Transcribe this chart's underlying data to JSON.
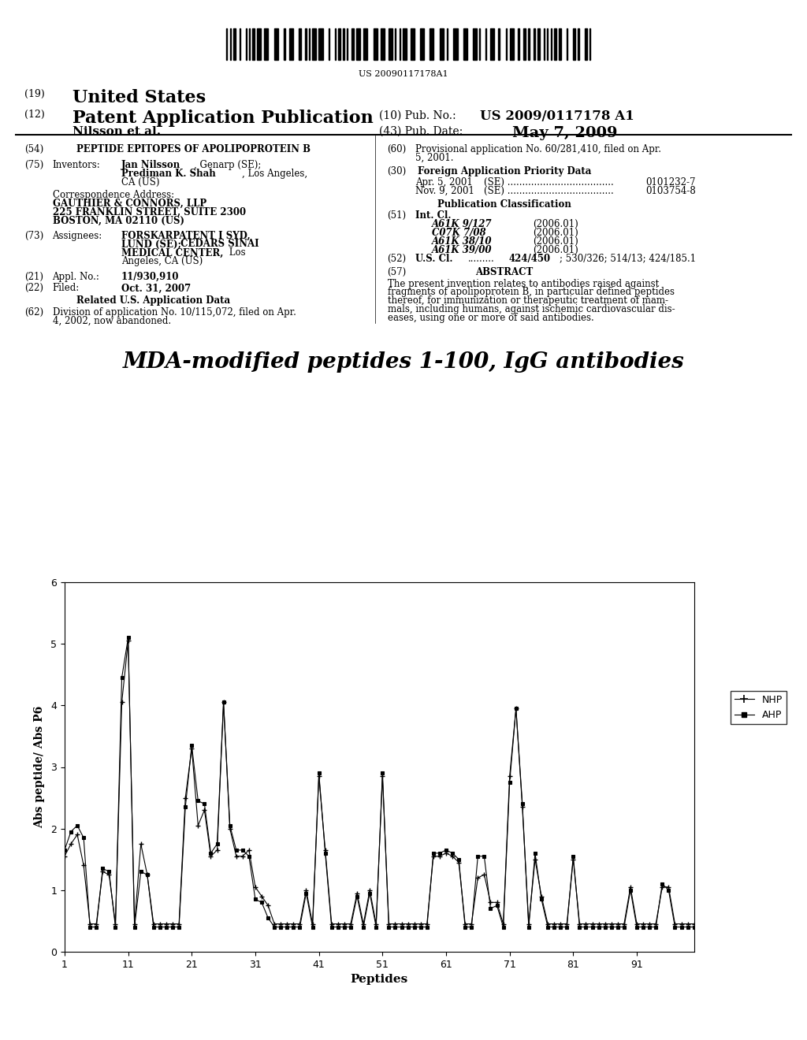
{
  "title": "MDA-modified peptides 1-100, IgG antibodies",
  "xlabel": "Peptides",
  "ylabel": "Abs peptide/ Abs P6",
  "ylim": [
    0,
    6
  ],
  "yticks": [
    0,
    1,
    2,
    3,
    4,
    5,
    6
  ],
  "xticks": [
    1,
    11,
    21,
    31,
    41,
    51,
    61,
    71,
    81,
    91
  ],
  "legend_nhp": "NHP",
  "legend_ahp": "AHP",
  "nhp_data": [
    1.55,
    1.75,
    1.9,
    1.4,
    0.45,
    0.45,
    1.3,
    1.25,
    0.45,
    4.05,
    5.05,
    0.45,
    1.75,
    1.25,
    0.45,
    0.45,
    0.45,
    0.45,
    0.45,
    2.5,
    3.3,
    2.05,
    2.3,
    1.55,
    1.65,
    4.05,
    2.0,
    1.55,
    1.55,
    1.65,
    1.05,
    0.9,
    0.75,
    0.45,
    0.45,
    0.45,
    0.45,
    0.45,
    1.0,
    0.45,
    2.85,
    1.65,
    0.45,
    0.45,
    0.45,
    0.45,
    0.95,
    0.45,
    1.0,
    0.45,
    2.85,
    0.45,
    0.45,
    0.45,
    0.45,
    0.45,
    0.45,
    0.45,
    1.55,
    1.55,
    1.6,
    1.55,
    1.45,
    0.45,
    0.45,
    1.2,
    1.25,
    0.8,
    0.8,
    0.45,
    2.85,
    3.95,
    2.35,
    0.45,
    1.5,
    0.9,
    0.45,
    0.45,
    0.45,
    0.45,
    1.5,
    0.45,
    0.45,
    0.45,
    0.45,
    0.45,
    0.45,
    0.45,
    0.45,
    1.05,
    0.45,
    0.45,
    0.45,
    0.45,
    1.05,
    1.05,
    0.45,
    0.45,
    0.45,
    0.45
  ],
  "ahp_data": [
    1.65,
    1.95,
    2.05,
    1.85,
    0.4,
    0.4,
    1.35,
    1.3,
    0.4,
    4.45,
    5.1,
    0.4,
    1.3,
    1.25,
    0.4,
    0.4,
    0.4,
    0.4,
    0.4,
    2.35,
    3.35,
    2.45,
    2.4,
    1.6,
    1.75,
    4.05,
    2.05,
    1.65,
    1.65,
    1.55,
    0.85,
    0.8,
    0.55,
    0.4,
    0.4,
    0.4,
    0.4,
    0.4,
    0.95,
    0.4,
    2.9,
    1.6,
    0.4,
    0.4,
    0.4,
    0.4,
    0.9,
    0.4,
    0.95,
    0.4,
    2.9,
    0.4,
    0.4,
    0.4,
    0.4,
    0.4,
    0.4,
    0.4,
    1.6,
    1.6,
    1.65,
    1.6,
    1.5,
    0.4,
    0.4,
    1.55,
    1.55,
    0.7,
    0.75,
    0.4,
    2.75,
    3.95,
    2.4,
    0.4,
    1.6,
    0.85,
    0.4,
    0.4,
    0.4,
    0.4,
    1.55,
    0.4,
    0.4,
    0.4,
    0.4,
    0.4,
    0.4,
    0.4,
    0.4,
    1.0,
    0.4,
    0.4,
    0.4,
    0.4,
    1.1,
    1.0,
    0.4,
    0.4,
    0.4,
    0.4
  ],
  "barcode_text": "US 20090117178A1",
  "line1_label": "(19)",
  "line1_text": "United States",
  "line2_label": "(12)",
  "line2_text": "Patent Application Publication",
  "pub_no_label": "(10) Pub. No.:",
  "pub_no_value": "US 2009/0117178 A1",
  "author": "Nilsson et al.",
  "pub_date_label": "(43) Pub. Date:",
  "pub_date_value": "May 7, 2009",
  "field54_label": "(54)",
  "field54_text": "PEPTIDE EPITOPES OF APOLIPOPROTEIN B",
  "field75_label": "(75)",
  "field75_name": "Inventors:",
  "inventor1_bold": "Jan Nilsson",
  "inventor1_rest": ", Genarp (SE);",
  "inventor2_bold": "Prediman K. Shah",
  "inventor2_rest": ", Los Angeles,",
  "inventor2_line2": "CA (US)",
  "corr_label": "Correspondence Address:",
  "corr_line1": "GAUTHIER & CONNORS, LLP",
  "corr_line2": "225 FRANKLIN STREET, SUITE 2300",
  "corr_line3": "BOSTON, MA 02110 (US)",
  "field73_label": "(73)",
  "field73_name": "Assignees:",
  "assignee_line1": "FORSKARPATENT I SYD,",
  "assignee_line2_bold": "LUND (SE);",
  "assignee_line2_rest": " CEDARS SINAI",
  "assignee_line3_bold": "MEDICAL CENTER,",
  "assignee_line3_rest": " Los",
  "assignee_line4": "Angeles, CA (US)",
  "field21_label": "(21)",
  "field21_name": "Appl. No.:",
  "field21_value": "11/930,910",
  "field22_label": "(22)",
  "field22_name": "Filed:",
  "field22_value": "Oct. 31, 2007",
  "related_header": "Related U.S. Application Data",
  "field62_label": "(62)",
  "field62_text1": "Division of application No. 10/115,072, filed on Apr.",
  "field62_text2": "4, 2002, now abandoned.",
  "field60_label": "(60)",
  "field60_text1": "Provisional application No. 60/281,410, filed on Apr.",
  "field60_text2": "5, 2001.",
  "field30_label": "(30)",
  "field30_header": "Foreign Application Priority Data",
  "priority1_date": "Apr. 5, 2001",
  "priority1_country": "(SE) ....................................",
  "priority1_num": "0101232-7",
  "priority2_date": "Nov. 9, 2001",
  "priority2_country": "(SE) ....................................",
  "priority2_num": "0103754-8",
  "pub_class_header": "Publication Classification",
  "field51_label": "(51)",
  "field51_name": "Int. Cl.",
  "int_cl": [
    [
      "A61K 9/127",
      "(2006.01)"
    ],
    [
      "C07K 7/08",
      "(2006.01)"
    ],
    [
      "A61K 38/10",
      "(2006.01)"
    ],
    [
      "A61K 39/00",
      "(2006.01)"
    ]
  ],
  "field52_label": "(52)",
  "field52_name": "U.S. Cl.",
  "field52_dots": ".........",
  "field52_bold": "424/450",
  "field52_rest": "; 530/326; 514/13; 424/185.1",
  "field57_label": "(57)",
  "field57_header": "ABSTRACT",
  "abstract_text": "The present invention relates to antibodies raised against fragments of apolipoprotein B, in particular defined peptides thereof, for immunization or therapeutic treatment of mammals, including humans, against ischemic cardiovascular diseases, using one or more of said antibodies."
}
